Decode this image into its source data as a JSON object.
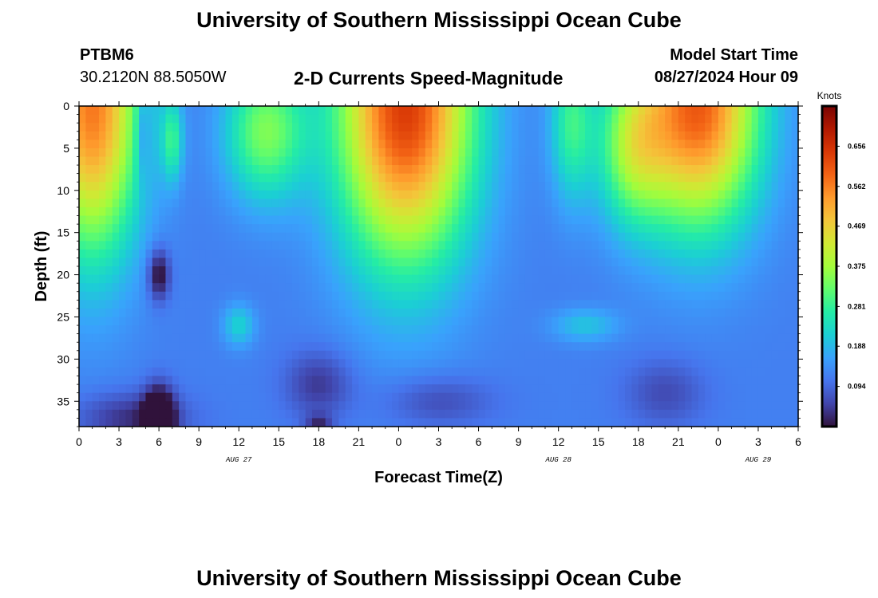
{
  "header": {
    "title": "University of Southern Mississippi Ocean Cube",
    "station_id": "PTBM6",
    "station_coords": "30.2120N  88.5050W",
    "chart_title": "2-D Currents Speed-Magnitude",
    "model_label": "Model Start Time",
    "model_time": "08/27/2024 Hour 09"
  },
  "footer": {
    "title": "University of Southern Mississippi Ocean Cube"
  },
  "chart_data": {
    "type": "heatmap",
    "title": "2-D Currents Speed-Magnitude",
    "xlabel": "Forecast Time(Z)",
    "ylabel": "Depth (ft)",
    "x_ticks": [
      "0",
      "3",
      "6",
      "9",
      "12",
      "15",
      "18",
      "21",
      "0",
      "3",
      "6",
      "9",
      "12",
      "15",
      "18",
      "21",
      "0",
      "3",
      "6"
    ],
    "x_range_hours": [
      0,
      54
    ],
    "date_labels": [
      {
        "label": "AUG 27",
        "hour": 12
      },
      {
        "label": "AUG 28",
        "hour": 36
      },
      {
        "label": "AUG 29",
        "hour": 51
      }
    ],
    "y_ticks": [
      "0",
      "5",
      "10",
      "15",
      "20",
      "25",
      "30",
      "35"
    ],
    "y_range_ft": [
      0,
      38
    ],
    "y_inverted": true,
    "colorbar": {
      "unit": "Knots",
      "range": [
        0,
        0.75
      ],
      "ticks": [
        "0.656",
        "0.562",
        "0.469",
        "0.375",
        "0.281",
        "0.188",
        "0.094"
      ],
      "colormap": [
        "#30123b",
        "#4145ab",
        "#4675ed",
        "#39a2fc",
        "#1bcfd4",
        "#24eca6",
        "#61fc6c",
        "#a4fc3b",
        "#d1e834",
        "#f3c63a",
        "#fe9b2d",
        "#f36315",
        "#d93806",
        "#b11901",
        "#7a0403"
      ]
    },
    "features": [
      {
        "cx": 1,
        "cy": 0,
        "sx": 3.5,
        "sy": 17,
        "v": 0.45
      },
      {
        "cx": 24.5,
        "cy": 0,
        "sx": 5,
        "sy": 18,
        "v": 0.52
      },
      {
        "cx": 46.5,
        "cy": 0,
        "sx": 4.5,
        "sy": 14,
        "v": 0.48
      },
      {
        "cx": 14,
        "cy": 3,
        "sx": 3,
        "sy": 8,
        "v": 0.22
      },
      {
        "cx": 37,
        "cy": 2,
        "sx": 1.6,
        "sy": 9,
        "v": 0.16
      },
      {
        "cx": 41.5,
        "cy": 5,
        "sx": 2.6,
        "sy": 9,
        "v": 0.2
      },
      {
        "cx": 12,
        "cy": 26,
        "sx": 1.2,
        "sy": 2.5,
        "v": 0.1
      },
      {
        "cx": 38,
        "cy": 26,
        "sx": 2.5,
        "sy": 2,
        "v": 0.08
      },
      {
        "cx": 6,
        "cy": 20,
        "sx": 0.8,
        "sy": 3,
        "v": -0.14
      },
      {
        "cx": 6,
        "cy": 37,
        "sx": 1.1,
        "sy": 3.5,
        "v": -0.22
      },
      {
        "cx": 4,
        "cy": 37,
        "sx": 4,
        "sy": 3,
        "v": -0.09
      },
      {
        "cx": 18,
        "cy": 33,
        "sx": 2.5,
        "sy": 4,
        "v": -0.08
      },
      {
        "cx": 27,
        "cy": 35,
        "sx": 4,
        "sy": 3,
        "v": -0.06
      },
      {
        "cx": 44,
        "cy": 34,
        "sx": 3,
        "sy": 4,
        "v": -0.06
      },
      {
        "cx": 18,
        "cy": 37.5,
        "sx": 1,
        "sy": 1,
        "v": -0.08
      },
      {
        "cx": 7,
        "cy": 4,
        "sx": 0.8,
        "sy": 5,
        "v": 0.15
      },
      {
        "cx": 4.8,
        "cy": 3,
        "sx": 0.5,
        "sy": 6,
        "v": -0.08
      }
    ],
    "base_value": 0.12
  }
}
